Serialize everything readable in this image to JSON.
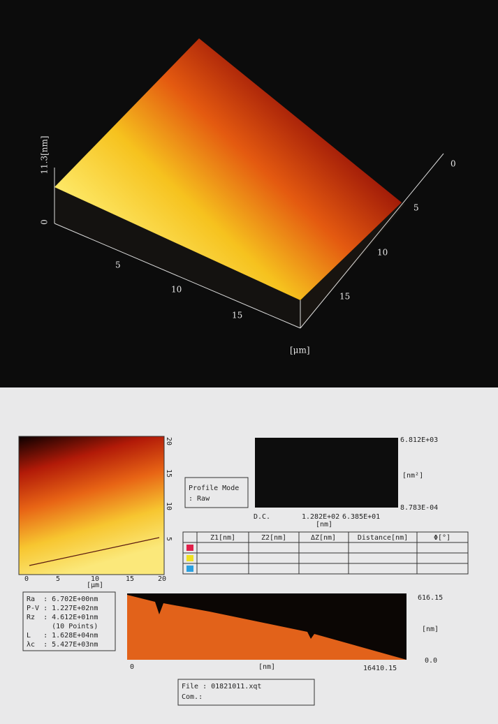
{
  "surface_3d": {
    "z_label": "11.3[nm]",
    "z_zero": "0",
    "x_ticks": [
      "5",
      "10",
      "15"
    ],
    "y_ticks": [
      "0",
      "5",
      "10",
      "15"
    ],
    "unit": "[μm]"
  },
  "image_2d": {
    "right_ticks": [
      "20",
      "15",
      "10",
      "5"
    ],
    "bottom_ticks": [
      "0",
      "5",
      "10",
      "15",
      "20"
    ],
    "unit": "[μm]"
  },
  "profile_mode": {
    "title": "Profile Mode",
    "value": ": Raw"
  },
  "spectrum": {
    "top": "6.812E+03",
    "unit": "[nm²]",
    "bottom": "8.783E-04",
    "dc": "D.C.",
    "x1": "1.282E+02",
    "x2": "6.385E+01",
    "x_unit": "[nm]"
  },
  "table": {
    "headers": [
      "Z1[nm]",
      "Z2[nm]",
      "ΔZ[nm]",
      "Distance[nm]",
      "Φ[°]"
    ]
  },
  "stats": [
    "Ra  : 6.702E+00nm",
    "P-V : 1.227E+02nm",
    "Rz  : 4.612E+01nm",
    "      (10 Points)",
    "L   : 1.628E+04nm",
    "λc  : 5.427E+03nm"
  ],
  "profile": {
    "top": "616.15",
    "unit": "[nm]",
    "bottom": "0.0",
    "x_start": "0",
    "x_unit": "[nm]",
    "x_end": "16410.15"
  },
  "file": {
    "name": "File  : 01821011.xqt",
    "comment": "Com.:"
  }
}
